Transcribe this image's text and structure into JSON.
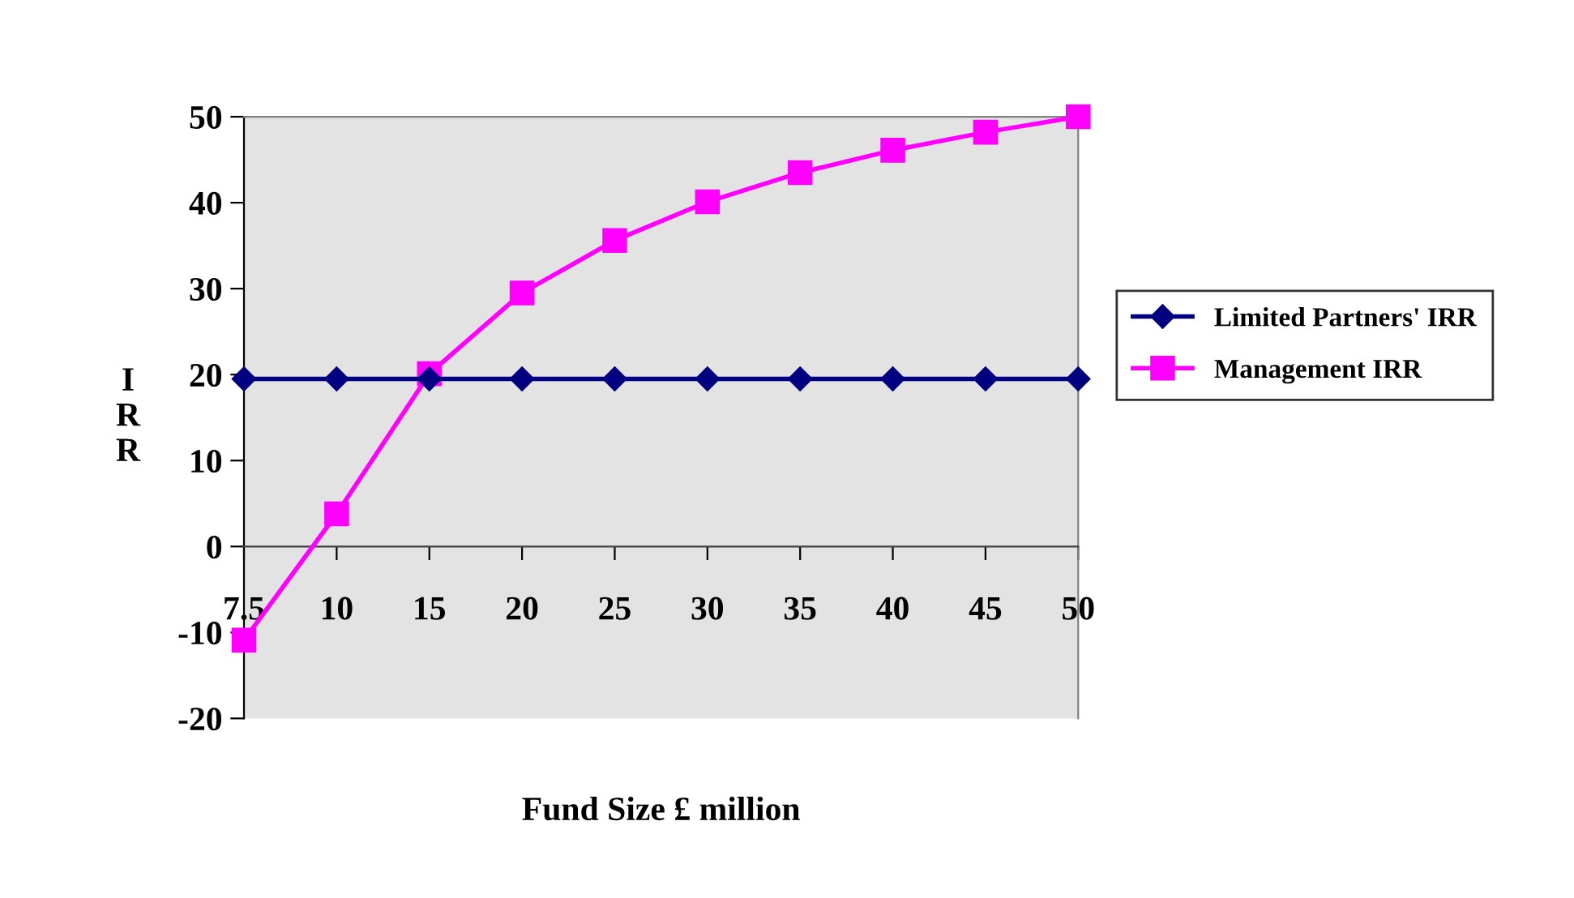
{
  "chart_data": {
    "type": "line",
    "xlabel": "Fund Size £ million",
    "ylabel": "I\nR\nR",
    "categories": [
      "7.5",
      "10",
      "15",
      "20",
      "25",
      "30",
      "35",
      "40",
      "45",
      "50"
    ],
    "series": [
      {
        "name": "Limited Partners' IRR",
        "color": "#000080",
        "marker": "diamond",
        "values": [
          19.5,
          19.5,
          19.5,
          19.5,
          19.5,
          19.5,
          19.5,
          19.5,
          19.5,
          19.5
        ]
      },
      {
        "name": "Management IRR",
        "color": "#ff00ff",
        "marker": "square",
        "values": [
          -10.9,
          3.8,
          20.1,
          29.5,
          35.6,
          40.1,
          43.5,
          46.1,
          48.2,
          50
        ]
      }
    ],
    "ylim": [
      -20,
      50
    ],
    "yticks": [
      -20,
      -10,
      0,
      10,
      20,
      30,
      40,
      50
    ],
    "grid": false,
    "legend": "right",
    "line_style": "solid"
  }
}
